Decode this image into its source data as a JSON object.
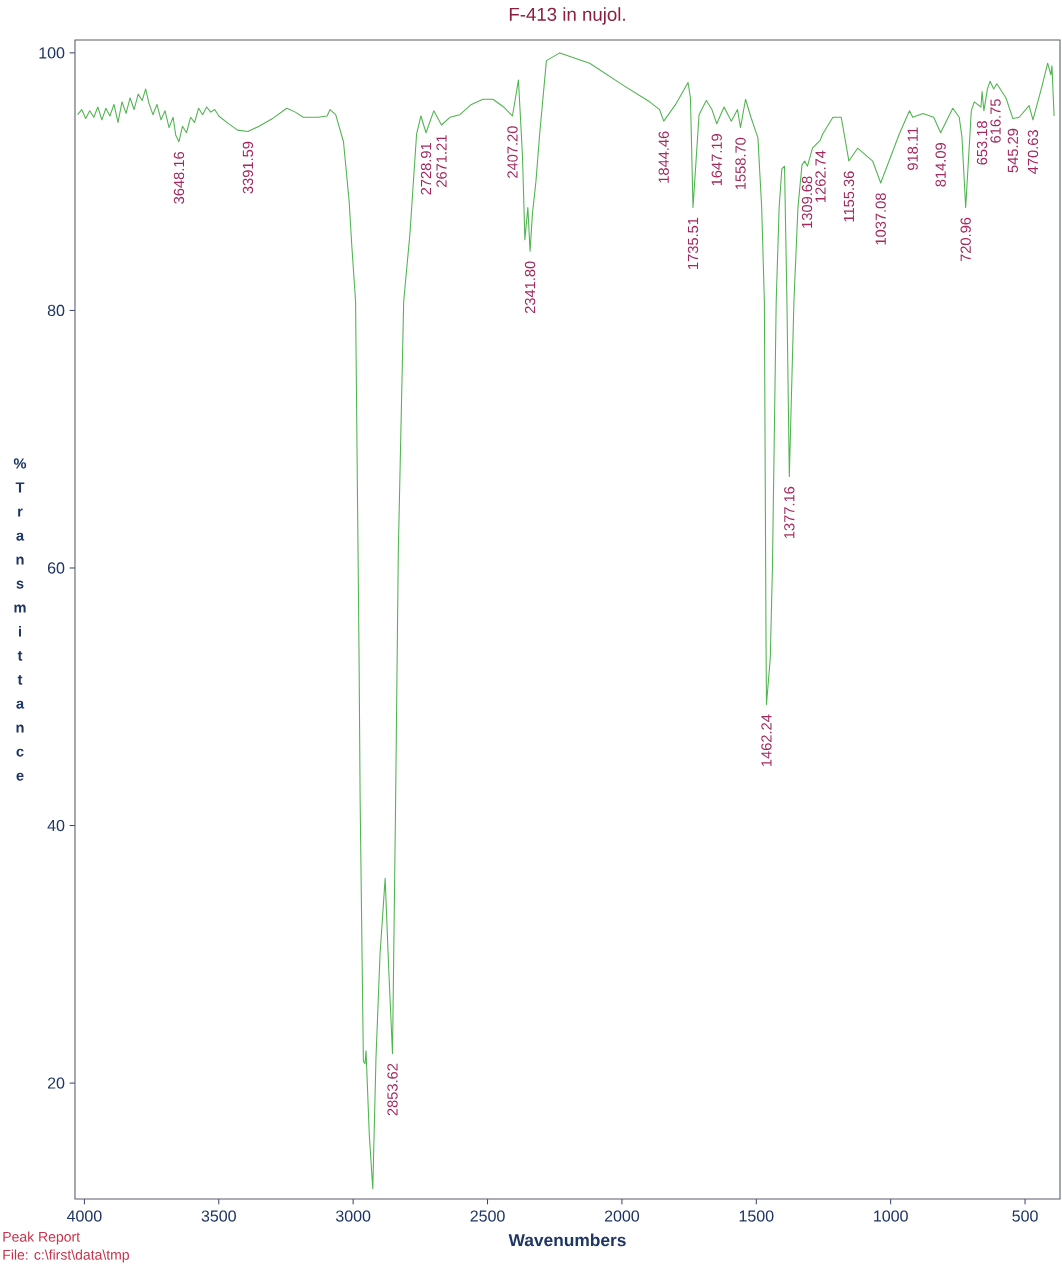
{
  "chart_data": {
    "type": "line",
    "title": "F-413  in nujol.",
    "xlabel": "Wavenumbers",
    "ylabel": "% Transmittance",
    "xlim": [
      4035,
      370
    ],
    "ylim": [
      11,
      101
    ],
    "xticks": [
      4000,
      3500,
      3000,
      2500,
      2000,
      1500,
      1000,
      500
    ],
    "yticks": [
      20,
      40,
      60,
      80,
      100
    ],
    "color": "#50b450",
    "x": [
      4025,
      4010,
      3995,
      3980,
      3965,
      3950,
      3935,
      3920,
      3905,
      3890,
      3875,
      3860,
      3845,
      3830,
      3815,
      3800,
      3785,
      3772,
      3760,
      3745,
      3730,
      3715,
      3700,
      3685,
      3670,
      3660,
      3648.16,
      3635,
      3620,
      3605,
      3590,
      3575,
      3560,
      3545,
      3530,
      3515,
      3500,
      3470,
      3430,
      3391.59,
      3350,
      3300,
      3247,
      3215,
      3186,
      3130,
      3097,
      3086,
      3065,
      3036,
      3015,
      3005,
      2991,
      2978,
      2974,
      2962,
      2956,
      2952,
      2940,
      2927,
      2915,
      2900,
      2881,
      2868,
      2853.62,
      2842,
      2832,
      2812,
      2789,
      2764,
      2748,
      2728.91,
      2700,
      2671.21,
      2640,
      2603,
      2560,
      2517,
      2480,
      2440,
      2407.2,
      2385,
      2370,
      2361,
      2350,
      2341.8,
      2333,
      2320,
      2306,
      2281,
      2231,
      2120,
      1996,
      1897,
      1860,
      1844.46,
      1800,
      1754,
      1745,
      1735.51,
      1713,
      1686,
      1665,
      1647.19,
      1620,
      1593,
      1570,
      1558.7,
      1540,
      1520,
      1494,
      1480,
      1470,
      1464,
      1462.24,
      1448,
      1440,
      1426,
      1415,
      1405,
      1395,
      1386,
      1377.16,
      1360,
      1345,
      1330,
      1320,
      1309.68,
      1291,
      1262.74,
      1253,
      1215,
      1184,
      1155.36,
      1123,
      1067,
      1037.08,
      968,
      930,
      918.11,
      880,
      840,
      814.09,
      769,
      745,
      735,
      720.96,
      700,
      689,
      664,
      660,
      653.18,
      640,
      630,
      616.75,
      605,
      571,
      545.29,
      522,
      485,
      470.63,
      436,
      416,
      404,
      400,
      392
    ],
    "values": [
      95.2,
      95.6,
      94.9,
      95.5,
      95.0,
      95.8,
      94.8,
      95.7,
      95.1,
      96.0,
      94.6,
      96.2,
      95.3,
      96.5,
      95.6,
      96.8,
      96.3,
      97.2,
      96.1,
      95.2,
      96.0,
      94.8,
      95.5,
      94.2,
      95.0,
      93.6,
      93.1,
      94.3,
      93.8,
      95.0,
      94.6,
      95.7,
      95.2,
      95.8,
      95.4,
      95.6,
      95.1,
      94.6,
      94.0,
      93.9,
      94.3,
      94.9,
      95.7,
      95.4,
      95.0,
      95.0,
      95.1,
      95.6,
      95.2,
      93.1,
      88.5,
      85.0,
      80.7,
      53.0,
      41.9,
      21.7,
      21.5,
      22.5,
      16.0,
      11.8,
      22.0,
      30.0,
      35.9,
      29.0,
      22.3,
      41.9,
      61.3,
      80.7,
      85.9,
      93.7,
      95.1,
      93.8,
      95.5,
      94.4,
      95.0,
      95.2,
      96.0,
      96.4,
      96.4,
      95.8,
      95.1,
      97.9,
      92.0,
      85.5,
      88.0,
      84.6,
      87.5,
      90.0,
      93.7,
      99.4,
      100.0,
      99.2,
      97.5,
      96.2,
      95.6,
      94.7,
      96.0,
      97.7,
      96.5,
      88.0,
      95.2,
      96.3,
      95.6,
      94.5,
      95.8,
      94.7,
      95.6,
      94.2,
      96.4,
      95.0,
      93.4,
      88.0,
      80.7,
      55.0,
      49.4,
      53.0,
      60.0,
      80.7,
      88.0,
      91.0,
      91.2,
      80.7,
      67.1,
      80.7,
      88.0,
      91.3,
      91.6,
      91.2,
      92.6,
      93.2,
      93.7,
      95.0,
      95.0,
      91.6,
      92.6,
      91.6,
      89.9,
      93.7,
      95.5,
      95.0,
      95.3,
      95.0,
      93.8,
      95.7,
      95.0,
      93.5,
      88.0,
      95.5,
      96.2,
      95.8,
      97.0,
      95.5,
      97.2,
      97.8,
      97.2,
      97.6,
      96.5,
      94.9,
      95.0,
      95.9,
      94.8,
      97.5,
      99.2,
      98.3,
      99.0,
      95.1
    ],
    "annotations": [
      {
        "text": "3648.16",
        "x": 3648.16,
        "y": 93.1
      },
      {
        "text": "3391.59",
        "x": 3391.59,
        "y": 93.9
      },
      {
        "text": "2853.62",
        "x": 2853.62,
        "y": 22.3
      },
      {
        "text": "2728.91",
        "x": 2728.91,
        "y": 93.8
      },
      {
        "text": "2671.21",
        "x": 2671.21,
        "y": 94.4
      },
      {
        "text": "2407.20",
        "x": 2407.2,
        "y": 95.1
      },
      {
        "text": "2341.80",
        "x": 2341.8,
        "y": 84.6
      },
      {
        "text": "1844.46",
        "x": 1844.46,
        "y": 94.7
      },
      {
        "text": "1735.51",
        "x": 1735.51,
        "y": 88.0
      },
      {
        "text": "1647.19",
        "x": 1647.19,
        "y": 94.5
      },
      {
        "text": "1558.70",
        "x": 1558.7,
        "y": 94.2
      },
      {
        "text": "1462.24",
        "x": 1462.24,
        "y": 49.4
      },
      {
        "text": "1377.16",
        "x": 1377.16,
        "y": 67.1
      },
      {
        "text": "1309.68",
        "x": 1309.68,
        "y": 91.2
      },
      {
        "text": "1262.74",
        "x": 1262.74,
        "y": 93.2
      },
      {
        "text": "1155.36",
        "x": 1155.36,
        "y": 91.6
      },
      {
        "text": "1037.08",
        "x": 1037.08,
        "y": 89.9
      },
      {
        "text": "918.11",
        "x": 918.11,
        "y": 95.0
      },
      {
        "text": "814.09",
        "x": 814.09,
        "y": 93.8
      },
      {
        "text": "720.96",
        "x": 720.96,
        "y": 88.0
      },
      {
        "text": "653.18",
        "x": 653.18,
        "y": 95.5
      },
      {
        "text": "616.75",
        "x": 616.75,
        "y": 97.2
      },
      {
        "text": "545.29",
        "x": 545.29,
        "y": 94.9
      },
      {
        "text": "470.63",
        "x": 470.63,
        "y": 94.8
      },
      "Peak Report",
      "File: c:\\first\\data\\tmp"
    ]
  }
}
